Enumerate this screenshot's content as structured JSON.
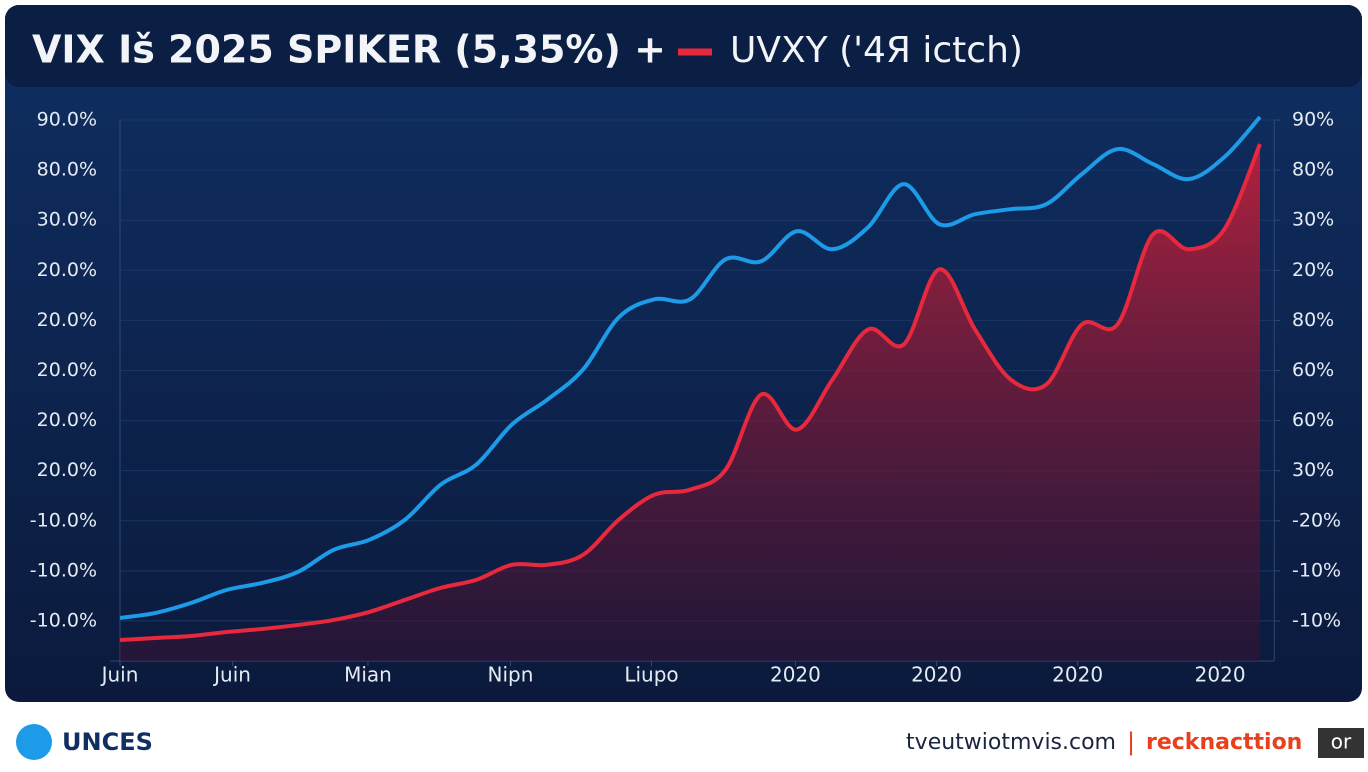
{
  "chart_data": {
    "type": "line",
    "title": "VIX Iš 2025 SPIKER (5,35%) +",
    "x": [
      0,
      0.25,
      0.5,
      0.75,
      1,
      1.25,
      1.5,
      1.75,
      2,
      2.25,
      2.5,
      2.75,
      3,
      3.25,
      3.5,
      3.75,
      4,
      4.25,
      4.5,
      4.75,
      5,
      5.25,
      5.5,
      5.75,
      6,
      6.25,
      6.5,
      6.75,
      7,
      7.25,
      7.5,
      7.75,
      8
    ],
    "series": [
      {
        "color": "#1e9be8",
        "values": [
          0.06,
          0.16,
          0.36,
          0.62,
          0.76,
          0.98,
          1.42,
          1.62,
          2.02,
          2.72,
          3.12,
          3.92,
          4.42,
          5.02,
          6.06,
          6.42,
          6.42,
          7.22,
          7.18,
          7.78,
          7.42,
          7.86,
          8.72,
          7.92,
          8.12,
          8.22,
          8.32,
          8.92,
          9.42,
          9.12,
          8.82,
          9.26,
          10.06
        ]
      },
      {
        "name": "UVXY ('4Я ictch)",
        "color": "#e8283c",
        "values": [
          -0.38,
          -0.34,
          -0.3,
          -0.22,
          -0.16,
          -0.08,
          0.02,
          0.18,
          0.42,
          0.66,
          0.82,
          1.12,
          1.12,
          1.32,
          2.02,
          2.52,
          2.62,
          3.02,
          4.52,
          3.82,
          4.82,
          5.82,
          5.52,
          7.02,
          5.82,
          4.82,
          4.72,
          5.92,
          5.92,
          7.72,
          7.42,
          7.82,
          9.52
        ]
      }
    ],
    "xlim": [
      0,
      8.1
    ],
    "xticks": [
      {
        "value": 0,
        "label": "Juin"
      },
      {
        "value": 0.79,
        "label": "Juin"
      },
      {
        "value": 1.74,
        "label": "Mian"
      },
      {
        "value": 2.74,
        "label": "Nipn"
      },
      {
        "value": 3.73,
        "label": "Liupo"
      },
      {
        "value": 4.74,
        "label": "2020"
      },
      {
        "value": 5.73,
        "label": "2020"
      },
      {
        "value": 6.72,
        "label": "2020"
      },
      {
        "value": 7.72,
        "label": "2020"
      }
    ],
    "ylim": [
      -0.8,
      10.4
    ],
    "yticks": [
      {
        "value": 0,
        "label": "-10.0%"
      },
      {
        "value": 1,
        "label": "-10.0%"
      },
      {
        "value": 2,
        "label": "-10.0%"
      },
      {
        "value": 3,
        "label": "20.0%"
      },
      {
        "value": 4,
        "label": "20.0%"
      },
      {
        "value": 5,
        "label": "20.0%"
      },
      {
        "value": 6,
        "label": "20.0%"
      },
      {
        "value": 7,
        "label": "20.0%"
      },
      {
        "value": 8,
        "label": "30.0%"
      },
      {
        "value": 9,
        "label": "80.0%"
      },
      {
        "value": 10,
        "label": "90.0%"
      }
    ],
    "y2lim": [
      -0.8,
      10.4
    ],
    "y2ticks": [
      {
        "value": 0,
        "label": "-10%"
      },
      {
        "value": 1,
        "label": "-10%"
      },
      {
        "value": 2,
        "label": "-20%"
      },
      {
        "value": 3,
        "label": "30%"
      },
      {
        "value": 4,
        "label": "60%"
      },
      {
        "value": 5,
        "label": "60%"
      },
      {
        "value": 6,
        "label": "80%"
      },
      {
        "value": 7,
        "label": "20%"
      },
      {
        "value": 8,
        "label": "30%"
      },
      {
        "value": 9,
        "label": "80%"
      },
      {
        "value": 10,
        "label": "90%"
      }
    ],
    "grid": true
  },
  "footer": {
    "brand": "UNCES",
    "site": "tvеutwiotmvis.com",
    "separator": "|",
    "tag": "recknacttion",
    "badge": "or"
  }
}
